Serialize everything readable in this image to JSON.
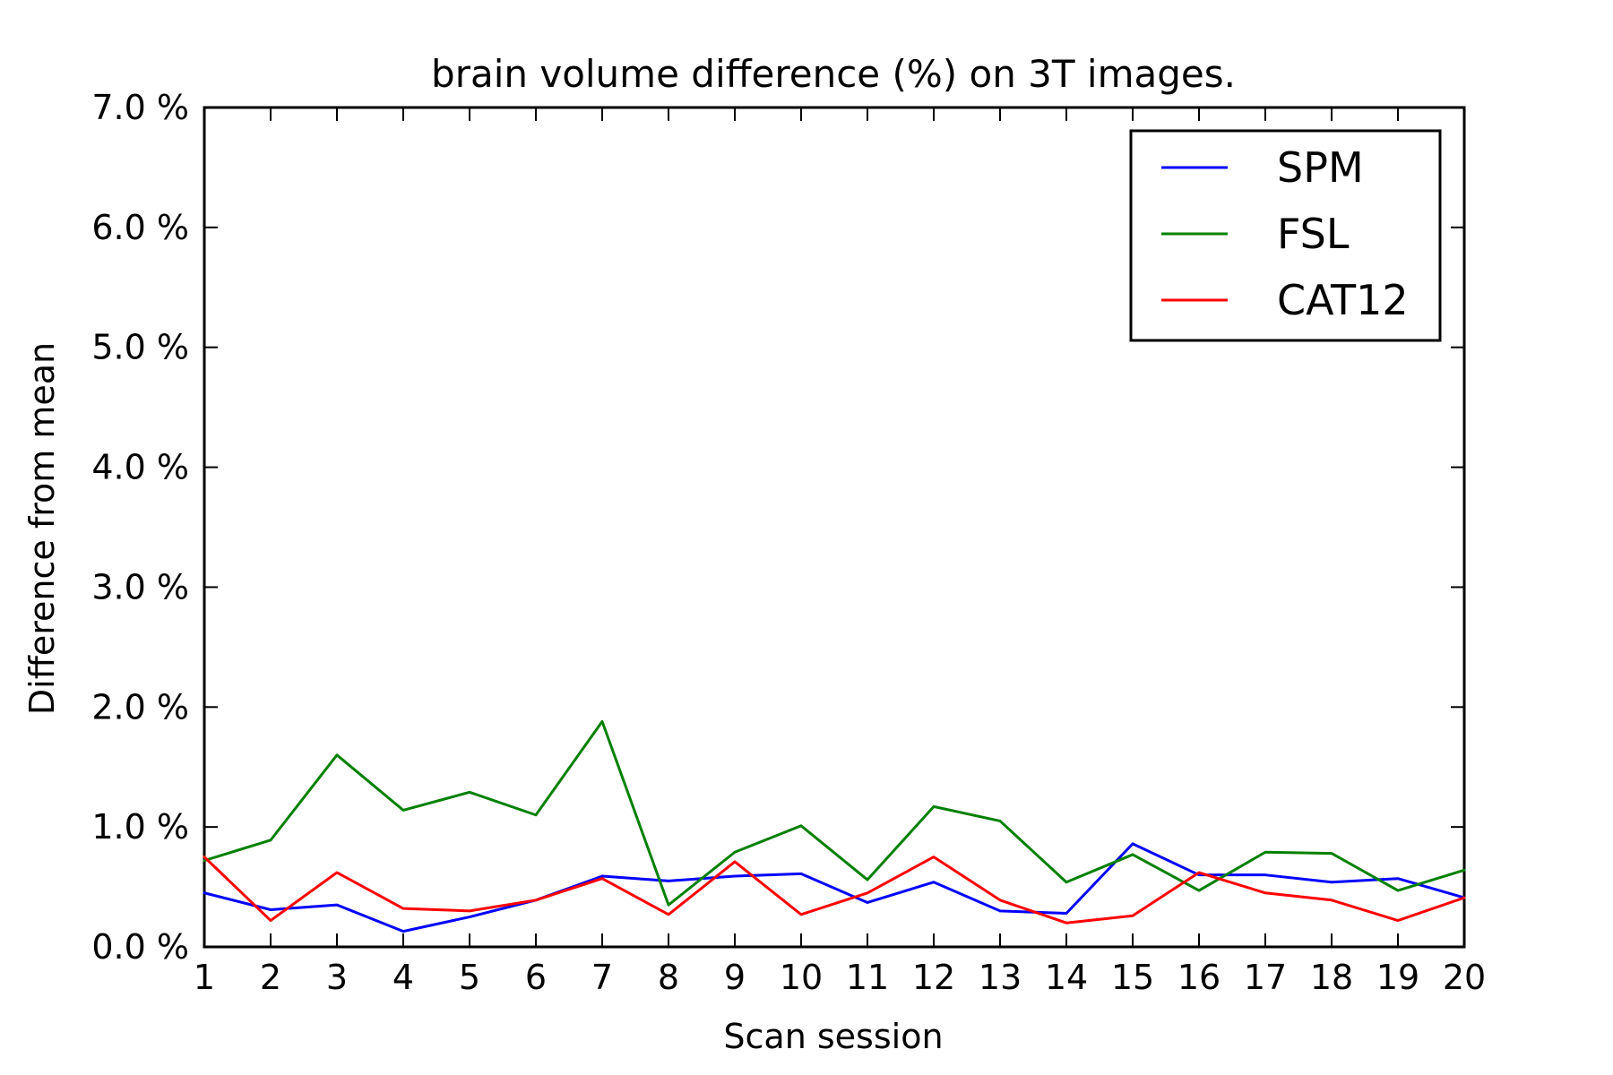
{
  "chart_data": {
    "type": "line",
    "title": "brain volume difference (%) on 3T images.",
    "xlabel": "Scan session",
    "ylabel": "Difference from mean",
    "x": [
      1,
      2,
      3,
      4,
      5,
      6,
      7,
      8,
      9,
      10,
      11,
      12,
      13,
      14,
      15,
      16,
      17,
      18,
      19,
      20
    ],
    "x_tick_labels": [
      "1",
      "2",
      "3",
      "4",
      "5",
      "6",
      "7",
      "8",
      "9",
      "10",
      "11",
      "12",
      "13",
      "14",
      "15",
      "16",
      "17",
      "18",
      "19",
      "20"
    ],
    "xlim": [
      1,
      20
    ],
    "ylim": [
      0,
      7
    ],
    "y_ticks": [
      0,
      1,
      2,
      3,
      4,
      5,
      6,
      7
    ],
    "y_tick_labels": [
      "0.0 %",
      "1.0 %",
      "2.0 %",
      "3.0 %",
      "4.0 %",
      "5.0 %",
      "6.0 %",
      "7.0 %"
    ],
    "grid": false,
    "legend_position": "top-right",
    "series": [
      {
        "name": "SPM",
        "color": "#0000ff",
        "values": [
          0.45,
          0.31,
          0.35,
          0.13,
          0.25,
          0.39,
          0.59,
          0.55,
          0.59,
          0.61,
          0.37,
          0.54,
          0.3,
          0.28,
          0.86,
          0.6,
          0.6,
          0.54,
          0.57,
          0.41
        ]
      },
      {
        "name": "FSL",
        "color": "#008000",
        "values": [
          0.72,
          0.89,
          1.6,
          1.14,
          1.29,
          1.1,
          1.88,
          0.35,
          0.79,
          1.01,
          0.56,
          1.17,
          1.05,
          0.54,
          0.77,
          0.47,
          0.79,
          0.78,
          0.47,
          0.64
        ]
      },
      {
        "name": "CAT12",
        "color": "#ff0000",
        "values": [
          0.75,
          0.22,
          0.62,
          0.32,
          0.3,
          0.39,
          0.57,
          0.27,
          0.71,
          0.27,
          0.45,
          0.75,
          0.39,
          0.2,
          0.26,
          0.62,
          0.45,
          0.39,
          0.22,
          0.41
        ]
      }
    ]
  }
}
